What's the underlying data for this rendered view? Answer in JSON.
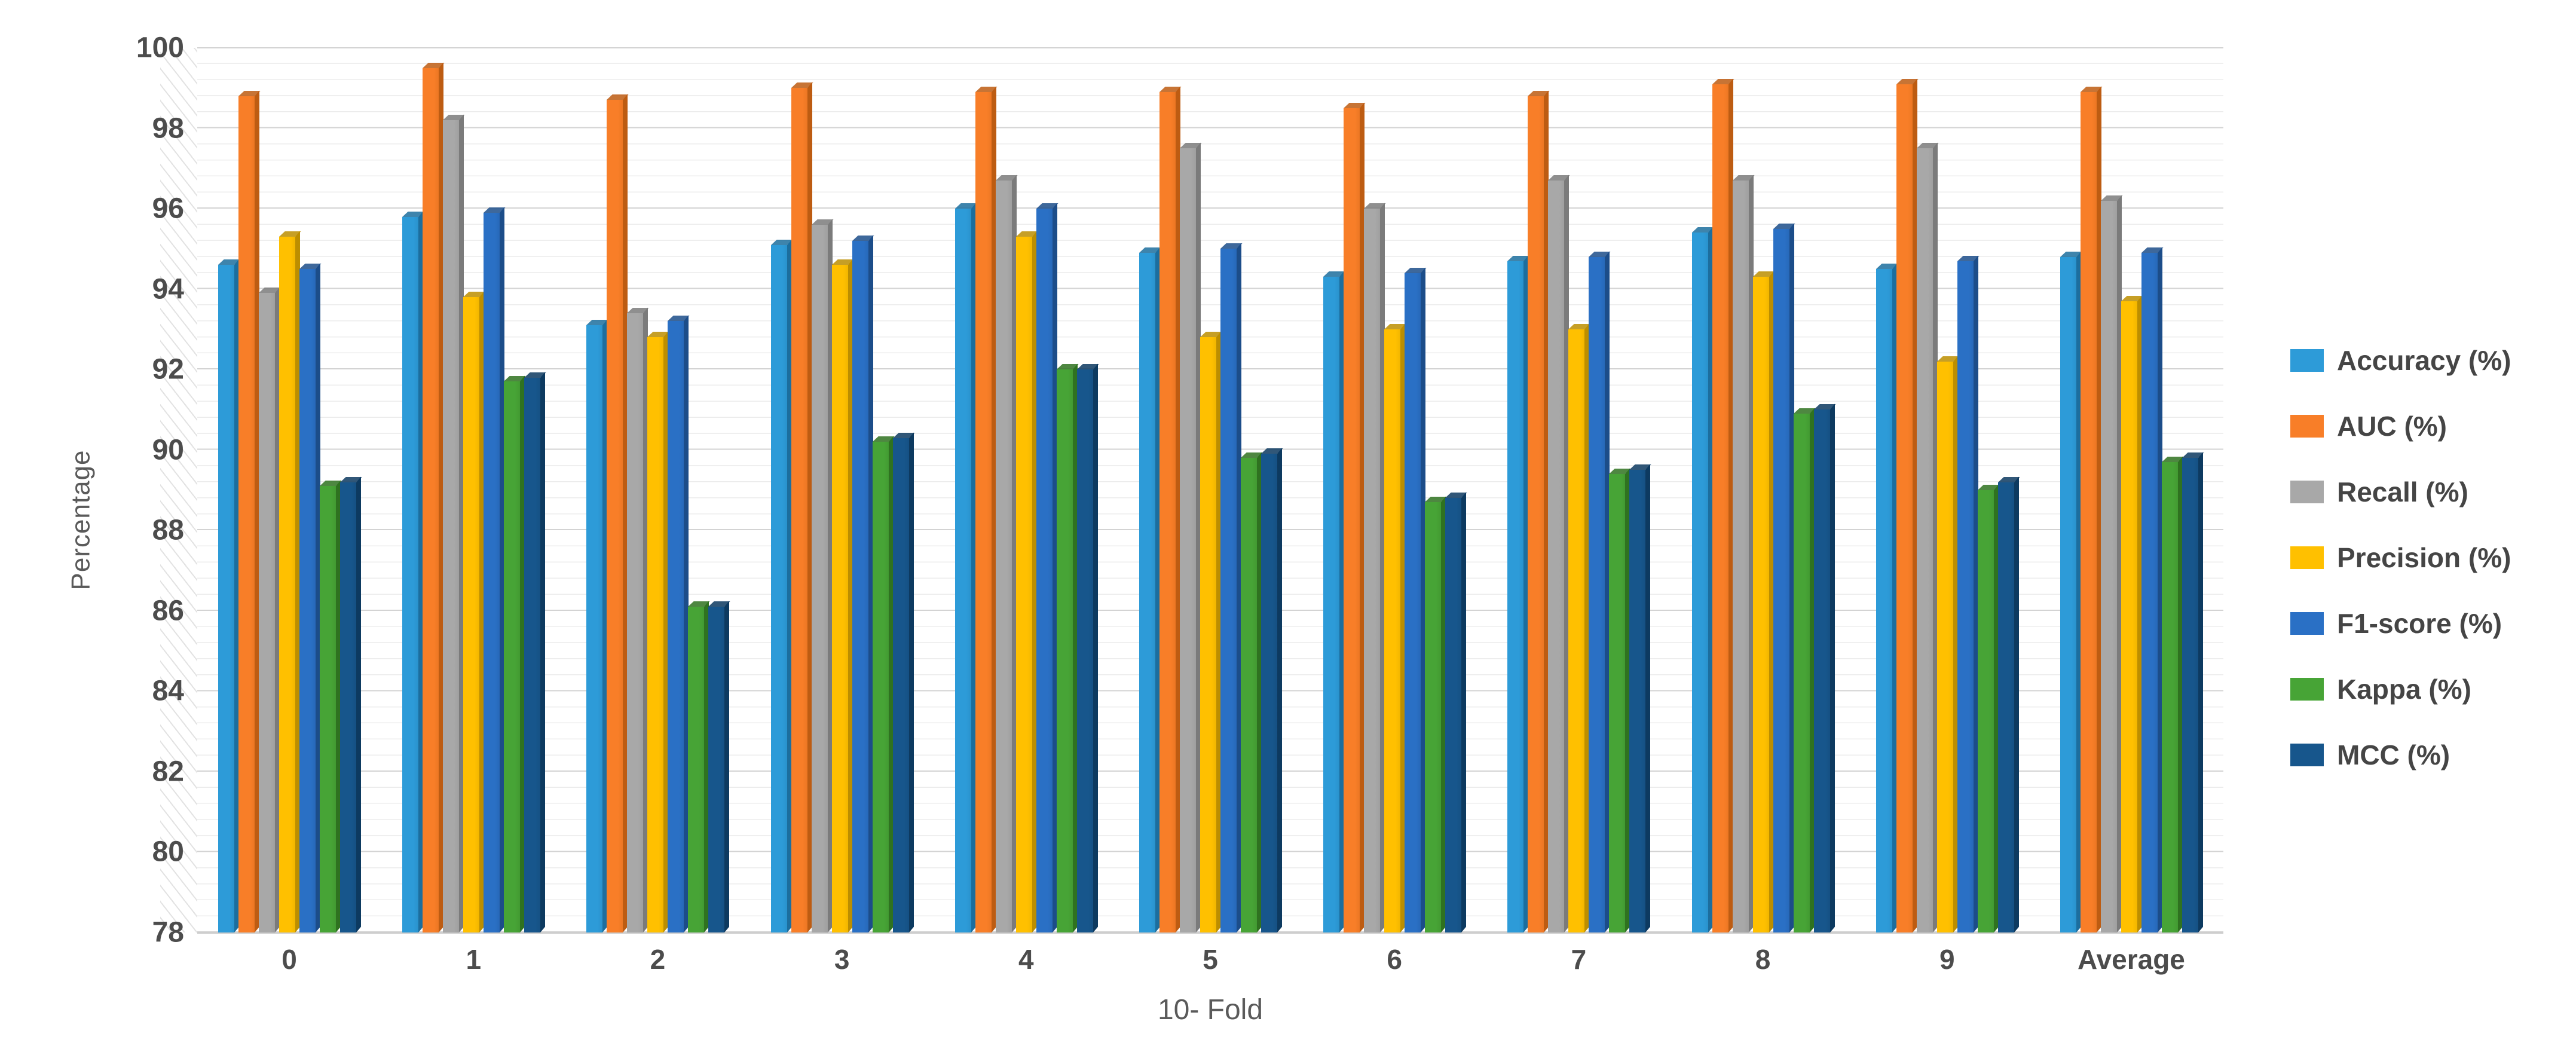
{
  "chart_data": {
    "type": "bar",
    "title": "",
    "xlabel": "10- Fold",
    "ylabel": "Percentage",
    "ylim": [
      78,
      100
    ],
    "ytick_step": 2,
    "minor_gridline_step": 0.4,
    "yticks": [
      100,
      98,
      96,
      94,
      92,
      90,
      88,
      86,
      84,
      82,
      80,
      78
    ],
    "grid": "major+minor horizontal",
    "legend_position": "right",
    "categories": [
      "0",
      "1",
      "2",
      "3",
      "4",
      "5",
      "6",
      "7",
      "8",
      "9",
      "Average"
    ],
    "series": [
      {
        "name": "Accuracy (%)",
        "color": "#2d9bd8",
        "side_color": "#1c6e9e",
        "values": [
          94.6,
          95.8,
          93.1,
          95.1,
          96.0,
          94.9,
          94.3,
          94.7,
          95.4,
          94.5,
          94.8
        ]
      },
      {
        "name": "AUC (%)",
        "color": "#f87e28",
        "side_color": "#bd5c12",
        "values": [
          98.8,
          99.5,
          98.7,
          99.0,
          98.9,
          98.9,
          98.5,
          98.8,
          99.1,
          99.1,
          98.9
        ]
      },
      {
        "name": "Recall (%)",
        "color": "#a8a8a8",
        "side_color": "#7b7b7b",
        "values": [
          93.9,
          98.2,
          93.4,
          95.6,
          96.7,
          97.5,
          96.0,
          96.7,
          96.7,
          97.5,
          96.2
        ]
      },
      {
        "name": "Precision (%)",
        "color": "#ffc000",
        "side_color": "#bc8e00",
        "values": [
          95.3,
          93.8,
          92.8,
          94.6,
          95.3,
          92.8,
          93.0,
          93.0,
          94.3,
          92.2,
          93.7
        ]
      },
      {
        "name": "F1-score (%)",
        "color": "#2a70c5",
        "side_color": "#1c4d89",
        "values": [
          94.5,
          95.9,
          93.2,
          95.2,
          96.0,
          95.0,
          94.4,
          94.8,
          95.5,
          94.7,
          94.9
        ]
      },
      {
        "name": "Kappa (%)",
        "color": "#47a436",
        "side_color": "#2f7220",
        "values": [
          89.1,
          91.7,
          86.1,
          90.2,
          92.0,
          89.8,
          88.7,
          89.4,
          90.9,
          89.0,
          89.7
        ]
      },
      {
        "name": "MCC (%)",
        "color": "#17568c",
        "side_color": "#0d3a60",
        "values": [
          89.2,
          91.8,
          86.1,
          90.3,
          92.0,
          89.9,
          88.8,
          89.5,
          91.0,
          89.2,
          89.8
        ]
      }
    ]
  }
}
